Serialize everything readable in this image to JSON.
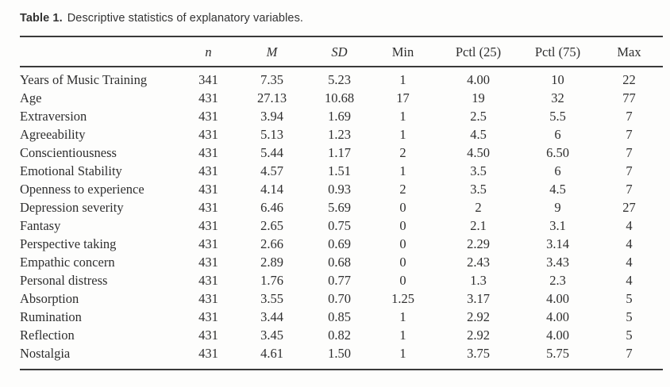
{
  "page": {
    "background": "#fdfdfc",
    "text_color": "#2e2e2e",
    "rule_color": "#3a3a3a"
  },
  "title": {
    "label": "Table 1.",
    "caption": "Descriptive statistics of explanatory variables."
  },
  "table": {
    "columns": [
      {
        "key": "label",
        "label": "",
        "italic": false
      },
      {
        "key": "n",
        "label": "n",
        "italic": true
      },
      {
        "key": "m",
        "label": "M",
        "italic": true
      },
      {
        "key": "sd",
        "label": "SD",
        "italic": true
      },
      {
        "key": "min",
        "label": "Min",
        "italic": false
      },
      {
        "key": "pctl25",
        "label": "Pctl (25)",
        "italic": false
      },
      {
        "key": "pctl75",
        "label": "Pctl (75)",
        "italic": false
      },
      {
        "key": "max",
        "label": "Max",
        "italic": false
      }
    ],
    "rows": [
      {
        "label": "Years of Music Training",
        "n": "341",
        "m": "7.35",
        "sd": "5.23",
        "min": "1",
        "pctl25": "4.00",
        "pctl75": "10",
        "max": "22"
      },
      {
        "label": "Age",
        "n": "431",
        "m": "27.13",
        "sd": "10.68",
        "min": "17",
        "pctl25": "19",
        "pctl75": "32",
        "max": "77"
      },
      {
        "label": "Extraversion",
        "n": "431",
        "m": "3.94",
        "sd": "1.69",
        "min": "1",
        "pctl25": "2.5",
        "pctl75": "5.5",
        "max": "7"
      },
      {
        "label": "Agreeability",
        "n": "431",
        "m": "5.13",
        "sd": "1.23",
        "min": "1",
        "pctl25": "4.5",
        "pctl75": "6",
        "max": "7"
      },
      {
        "label": "Conscientiousness",
        "n": "431",
        "m": "5.44",
        "sd": "1.17",
        "min": "2",
        "pctl25": "4.50",
        "pctl75": "6.50",
        "max": "7"
      },
      {
        "label": "Emotional Stability",
        "n": "431",
        "m": "4.57",
        "sd": "1.51",
        "min": "1",
        "pctl25": "3.5",
        "pctl75": "6",
        "max": "7"
      },
      {
        "label": "Openness to experience",
        "n": "431",
        "m": "4.14",
        "sd": "0.93",
        "min": "2",
        "pctl25": "3.5",
        "pctl75": "4.5",
        "max": "7"
      },
      {
        "label": "Depression severity",
        "n": "431",
        "m": "6.46",
        "sd": "5.69",
        "min": "0",
        "pctl25": "2",
        "pctl75": "9",
        "max": "27"
      },
      {
        "label": "Fantasy",
        "n": "431",
        "m": "2.65",
        "sd": "0.75",
        "min": "0",
        "pctl25": "2.1",
        "pctl75": "3.1",
        "max": "4"
      },
      {
        "label": "Perspective taking",
        "n": "431",
        "m": "2.66",
        "sd": "0.69",
        "min": "0",
        "pctl25": "2.29",
        "pctl75": "3.14",
        "max": "4"
      },
      {
        "label": "Empathic concern",
        "n": "431",
        "m": "2.89",
        "sd": "0.68",
        "min": "0",
        "pctl25": "2.43",
        "pctl75": "3.43",
        "max": "4"
      },
      {
        "label": "Personal distress",
        "n": "431",
        "m": "1.76",
        "sd": "0.77",
        "min": "0",
        "pctl25": "1.3",
        "pctl75": "2.3",
        "max": "4"
      },
      {
        "label": "Absorption",
        "n": "431",
        "m": "3.55",
        "sd": "0.70",
        "min": "1.25",
        "pctl25": "3.17",
        "pctl75": "4.00",
        "max": "5"
      },
      {
        "label": "Rumination",
        "n": "431",
        "m": "3.44",
        "sd": "0.85",
        "min": "1",
        "pctl25": "2.92",
        "pctl75": "4.00",
        "max": "5"
      },
      {
        "label": "Reflection",
        "n": "431",
        "m": "3.45",
        "sd": "0.82",
        "min": "1",
        "pctl25": "2.92",
        "pctl75": "4.00",
        "max": "5"
      },
      {
        "label": "Nostalgia",
        "n": "431",
        "m": "4.61",
        "sd": "1.50",
        "min": "1",
        "pctl25": "3.75",
        "pctl75": "5.75",
        "max": "7"
      }
    ]
  }
}
